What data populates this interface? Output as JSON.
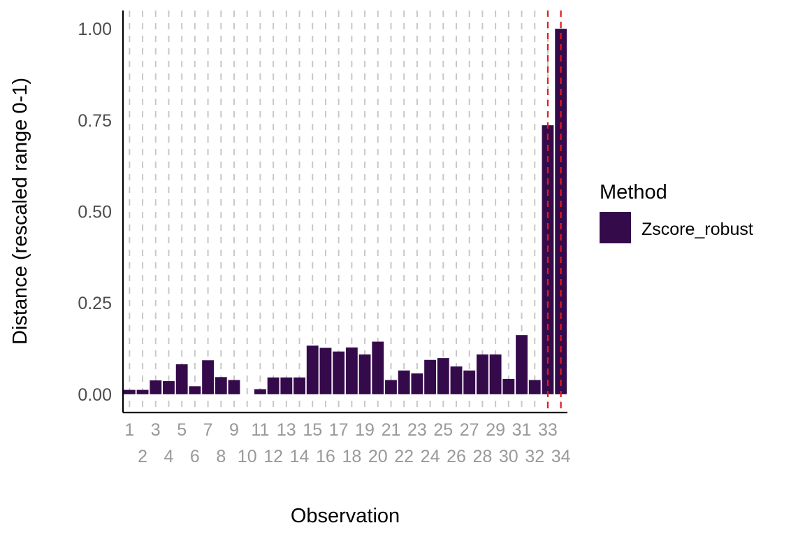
{
  "chart_data": {
    "type": "bar",
    "xlabel": "Observation",
    "ylabel": "Distance (rescaled range 0-1)",
    "ylim": [
      -0.05,
      1.05
    ],
    "yticks": [
      "0.00",
      "0.25",
      "0.50",
      "0.75",
      "1.00"
    ],
    "yticks_values": [
      0,
      0.25,
      0.5,
      0.75,
      1.0
    ],
    "grid": {
      "vertical_dashed": true,
      "horizontal": false
    },
    "categories": [
      "1",
      "2",
      "3",
      "4",
      "5",
      "6",
      "7",
      "8",
      "9",
      "10",
      "11",
      "12",
      "13",
      "14",
      "15",
      "16",
      "17",
      "18",
      "19",
      "20",
      "21",
      "22",
      "23",
      "24",
      "25",
      "26",
      "27",
      "28",
      "29",
      "30",
      "31",
      "32",
      "33",
      "34"
    ],
    "series": [
      {
        "name": "Zscore_robust",
        "color": "#350a4b",
        "values": [
          0.012,
          0.012,
          0.038,
          0.036,
          0.082,
          0.022,
          0.093,
          0.047,
          0.039,
          0.0,
          0.014,
          0.046,
          0.046,
          0.046,
          0.133,
          0.127,
          0.117,
          0.128,
          0.109,
          0.144,
          0.039,
          0.065,
          0.057,
          0.094,
          0.099,
          0.076,
          0.065,
          0.109,
          0.109,
          0.042,
          0.162,
          0.039,
          0.736,
          1.0
        ]
      }
    ],
    "highlight_lines": {
      "categories": [
        "33",
        "34"
      ],
      "color": "#e31a1c",
      "style": "dashed"
    },
    "legend": {
      "title": "Method",
      "position": "right",
      "entries": [
        "Zscore_robust"
      ]
    }
  }
}
